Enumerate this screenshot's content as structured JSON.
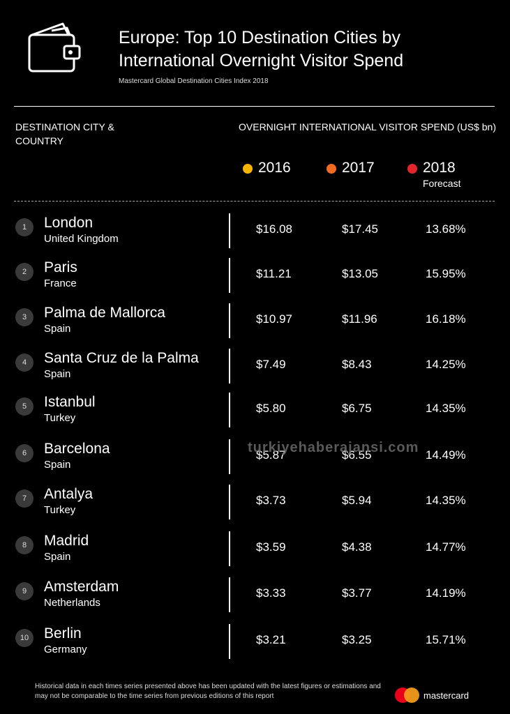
{
  "header": {
    "title_line1": "Europe: Top 10 Destination Cities by",
    "title_line2": "International Overnight Visitor Spend",
    "subtitle": "Mastercard Global Destination Cities Index 2018"
  },
  "columns": {
    "city": "DESTINATION CITY & COUNTRY",
    "spend": "OVERNIGHT INTERNATIONAL VISITOR SPEND (US$ bn)"
  },
  "legend": [
    {
      "label": "2016",
      "sub": "",
      "color": "#f7b500"
    },
    {
      "label": "2017",
      "sub": "",
      "color": "#f16a22"
    },
    {
      "label": "2018",
      "sub": "Forecast",
      "color": "#e3262d"
    }
  ],
  "rows": [
    {
      "rank": "1",
      "city": "London",
      "country": "United Kingdom",
      "v2016": "$16.08",
      "v2017": "$17.45",
      "v2018": "13.68%"
    },
    {
      "rank": "2",
      "city": "Paris",
      "country": "France",
      "v2016": "$11.21",
      "v2017": "$13.05",
      "v2018": "15.95%"
    },
    {
      "rank": "3",
      "city": "Palma de Mallorca",
      "country": "Spain",
      "v2016": "$10.97",
      "v2017": "$11.96",
      "v2018": "16.18%"
    },
    {
      "rank": "4",
      "city": "Santa Cruz de la Palma",
      "country": "Spain",
      "v2016": "$7.49",
      "v2017": "$8.43",
      "v2018": "14.25%"
    },
    {
      "rank": "5",
      "city": "Istanbul",
      "country": "Turkey",
      "v2016": "$5.80",
      "v2017": "$6.75",
      "v2018": "14.35%"
    },
    {
      "rank": "6",
      "city": "Barcelona",
      "country": "Spain",
      "v2016": "$5.87",
      "v2017": "$6.55",
      "v2018": "14.49%"
    },
    {
      "rank": "7",
      "city": "Antalya",
      "country": "Turkey",
      "v2016": "$3.73",
      "v2017": "$5.94",
      "v2018": "14.35%"
    },
    {
      "rank": "8",
      "city": "Madrid",
      "country": "Spain",
      "v2016": "$3.59",
      "v2017": "$4.38",
      "v2018": "14.77%"
    },
    {
      "rank": "9",
      "city": "Amsterdam",
      "country": "Netherlands",
      "v2016": "$3.33",
      "v2017": "$3.77",
      "v2018": "14.19%"
    },
    {
      "rank": "10",
      "city": "Berlin",
      "country": "Germany",
      "v2016": "$3.21",
      "v2017": "$3.25",
      "v2018": "15.71%"
    }
  ],
  "watermark": "turkiyehaberajansi.com",
  "footnote": "Historical data in each times series presented above has been updated with the latest figures or estimations and may not be comparable to the time series from previous editions of this report",
  "brand": {
    "name": "mastercard",
    "red": "#eb001b",
    "yellow": "#f79e1b"
  }
}
